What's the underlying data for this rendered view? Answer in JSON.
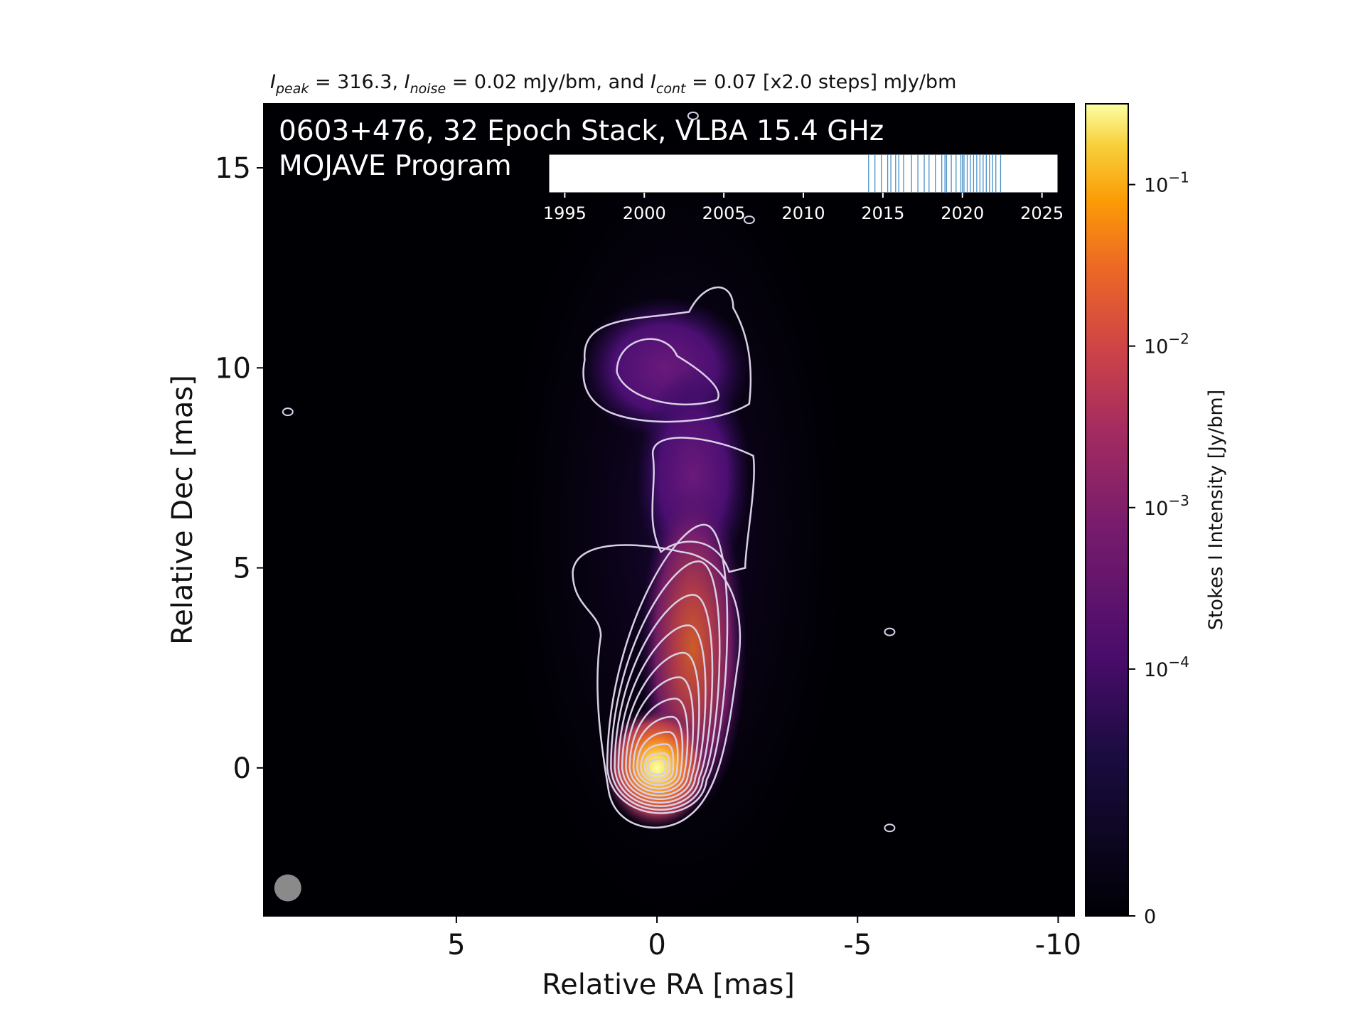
{
  "header": {
    "peak_sym": "I",
    "peak_sub": "peak",
    "peak_val": " = 316.3, ",
    "noise_sym": "I",
    "noise_sub": "noise",
    "noise_val": " = 0.02 mJy/bm, and ",
    "cont_sym": "I",
    "cont_sub": "cont",
    "cont_val": " = 0.07 [x2.0 steps] mJy/bm"
  },
  "overlay": {
    "line1": "0603+476, 32 Epoch Stack, VLBA 15.4 GHz",
    "line2": "MOJAVE Program"
  },
  "colors": {
    "background": "#000004",
    "contour": "#d9d0e6",
    "epoch_tick": "#4a90c8",
    "beam": "#8a8a8a"
  },
  "chart_data": [
    {
      "type": "heatmap",
      "xlabel": "Relative RA [mas]",
      "ylabel": "Relative Dec [mas]",
      "xlim": [
        9.8,
        -10.4
      ],
      "ylim": [
        -3.7,
        16.6
      ],
      "x_ticks": [
        5,
        0,
        -5,
        -10
      ],
      "x_tick_labels": [
        "5",
        "0",
        "-5",
        "-10"
      ],
      "y_ticks": [
        0,
        5,
        10,
        15
      ],
      "y_tick_labels": [
        "0",
        "5",
        "10",
        "15"
      ],
      "colormap": "inferno",
      "peak_position": [
        0,
        0
      ],
      "jet_components": [
        {
          "ra": 0.0,
          "dec": 0.0,
          "relative_brightness": 1.0
        },
        {
          "ra": -0.9,
          "dec": 3.0,
          "relative_brightness": 0.03
        },
        {
          "ra": -0.9,
          "dec": 7.3,
          "relative_brightness": 0.004
        },
        {
          "ra": -0.2,
          "dec": 10.0,
          "relative_brightness": 0.003
        }
      ],
      "beam": {
        "ra": 9.2,
        "dec": -3.0
      }
    },
    {
      "type": "colorbar",
      "label": "Stokes I Intensity [Jy/bm]",
      "scale": "symlog",
      "tick_values": [
        0,
        0.0001,
        0.001,
        0.01,
        0.1
      ],
      "tick_labels": [
        {
          "base": "0",
          "exp": ""
        },
        {
          "base": "10",
          "exp": "−4"
        },
        {
          "base": "10",
          "exp": "−3"
        },
        {
          "base": "10",
          "exp": "−2"
        },
        {
          "base": "10",
          "exp": "−1"
        }
      ]
    },
    {
      "type": "scatter",
      "name": "epoch timeline",
      "xlim": [
        1994,
        2026
      ],
      "x_ticks": [
        1995,
        2000,
        2005,
        2010,
        2015,
        2020,
        2025
      ],
      "x_tick_labels": [
        "1995",
        "2000",
        "2005",
        "2010",
        "2015",
        "2020",
        "2025"
      ],
      "epochs": [
        2014.1,
        2014.5,
        2014.9,
        2015.3,
        2015.8,
        2016.3,
        2016.8,
        2017.2,
        2017.6,
        2017.9,
        2018.3,
        2018.7,
        2019.0,
        2019.3,
        2019.6,
        2019.9,
        2020.1,
        2020.3,
        2020.5,
        2020.7,
        2020.9,
        2021.1,
        2021.3,
        2021.5,
        2021.7,
        2021.9,
        2022.1,
        2022.4,
        2020.0,
        2018.9,
        2016.0,
        2015.5
      ]
    }
  ]
}
